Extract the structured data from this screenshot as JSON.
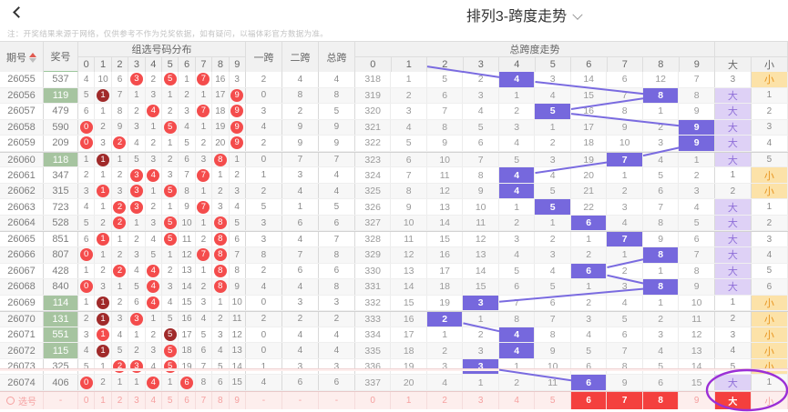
{
  "header": {
    "title": "排列3-跨度走势"
  },
  "icons": {
    "back": "chevron-left-icon",
    "title_dropdown": "chevron-down-icon",
    "sort": "sort-arrows-icon",
    "select_radio": "radio-circle-icon"
  },
  "note": "注：开奖结果来源于网络，仅供参考不作为兑奖依据，如有疑问，以福体彩官方数据为准。",
  "table": {
    "columns": {
      "period": "期号",
      "prize": "奖号",
      "dist_group": "组选号码分布",
      "dist_cols": [
        "0",
        "1",
        "2",
        "3",
        "4",
        "5",
        "6",
        "7",
        "8",
        "9"
      ],
      "span1": "一跨",
      "span2": "二跨",
      "span_total": "总跨",
      "trend_group": "总跨度走势",
      "trend_cols": [
        "0",
        "1",
        "2",
        "3",
        "4",
        "5",
        "6",
        "7",
        "8",
        "9"
      ],
      "big": "大",
      "small": "小"
    },
    "rows": [
      {
        "period": "26055",
        "prize": "537",
        "green": false,
        "dist": [
          "4",
          "10",
          "6",
          "3",
          "2",
          "5",
          "1",
          "7",
          "16",
          "3"
        ],
        "marks": [
          0,
          0,
          0,
          1,
          0,
          1,
          0,
          1,
          0,
          0
        ],
        "spans": [
          "2",
          "4",
          "4"
        ],
        "trend": [
          "318",
          "1",
          "5",
          "2",
          "4",
          "3",
          "14",
          "6",
          "12",
          "7"
        ],
        "hl": 4,
        "big": "3",
        "big_hl": false,
        "small": "小",
        "small_hl": true
      },
      {
        "period": "26056",
        "prize": "119",
        "green": true,
        "dist": [
          "5",
          "1",
          "7",
          "1",
          "3",
          "1",
          "2",
          "1",
          "17",
          "9"
        ],
        "marks": [
          0,
          2,
          0,
          0,
          0,
          0,
          0,
          0,
          0,
          1
        ],
        "spans": [
          "0",
          "8",
          "8"
        ],
        "trend": [
          "319",
          "2",
          "6",
          "3",
          "1",
          "4",
          "15",
          "7",
          "8",
          "8"
        ],
        "hl": 8,
        "big": "大",
        "big_hl": true,
        "small": "1",
        "small_hl": false
      },
      {
        "period": "26057",
        "prize": "479",
        "green": false,
        "dist": [
          "6",
          "1",
          "8",
          "2",
          "4",
          "2",
          "3",
          "7",
          "18",
          "9"
        ],
        "marks": [
          0,
          0,
          0,
          0,
          1,
          0,
          0,
          1,
          0,
          1
        ],
        "spans": [
          "3",
          "2",
          "5"
        ],
        "trend": [
          "320",
          "3",
          "7",
          "4",
          "2",
          "5",
          "16",
          "8",
          "1",
          "9"
        ],
        "hl": 5,
        "big": "大",
        "big_hl": true,
        "small": "2",
        "small_hl": false
      },
      {
        "period": "26058",
        "prize": "590",
        "green": false,
        "dist": [
          "0",
          "2",
          "9",
          "3",
          "1",
          "5",
          "4",
          "1",
          "19",
          "9"
        ],
        "marks": [
          1,
          0,
          0,
          0,
          0,
          1,
          0,
          0,
          0,
          1
        ],
        "spans": [
          "4",
          "9",
          "9"
        ],
        "trend": [
          "321",
          "4",
          "8",
          "5",
          "3",
          "1",
          "17",
          "9",
          "2",
          "9"
        ],
        "hl": 9,
        "big": "大",
        "big_hl": true,
        "small": "3",
        "small_hl": false
      },
      {
        "period": "26059",
        "prize": "209",
        "green": false,
        "dist": [
          "0",
          "3",
          "2",
          "4",
          "2",
          "1",
          "5",
          "2",
          "20",
          "9"
        ],
        "marks": [
          1,
          0,
          1,
          0,
          0,
          0,
          0,
          0,
          0,
          1
        ],
        "spans": [
          "2",
          "9",
          "9"
        ],
        "trend": [
          "322",
          "5",
          "9",
          "6",
          "4",
          "2",
          "18",
          "10",
          "3",
          "9"
        ],
        "hl": 9,
        "big": "大",
        "big_hl": true,
        "small": "4",
        "small_hl": false
      },
      {
        "period": "26060",
        "prize": "118",
        "green": true,
        "dist": [
          "1",
          "1",
          "1",
          "5",
          "3",
          "2",
          "6",
          "3",
          "8",
          "1"
        ],
        "marks": [
          0,
          2,
          0,
          0,
          0,
          0,
          0,
          0,
          1,
          0
        ],
        "spans": [
          "0",
          "7",
          "7"
        ],
        "trend": [
          "323",
          "6",
          "10",
          "7",
          "5",
          "3",
          "19",
          "7",
          "4",
          "1"
        ],
        "hl": 7,
        "big": "大",
        "big_hl": true,
        "small": "5",
        "small_hl": false
      },
      {
        "period": "26061",
        "prize": "347",
        "green": false,
        "dist": [
          "2",
          "1",
          "2",
          "3",
          "4",
          "3",
          "7",
          "7",
          "1",
          "2"
        ],
        "marks": [
          0,
          0,
          0,
          1,
          1,
          0,
          0,
          1,
          0,
          0
        ],
        "spans": [
          "1",
          "3",
          "4"
        ],
        "trend": [
          "324",
          "7",
          "11",
          "8",
          "4",
          "4",
          "20",
          "1",
          "5",
          "2"
        ],
        "hl": 4,
        "big": "1",
        "big_hl": false,
        "small": "小",
        "small_hl": true
      },
      {
        "period": "26062",
        "prize": "315",
        "green": false,
        "dist": [
          "3",
          "1",
          "3",
          "3",
          "1",
          "5",
          "8",
          "1",
          "2",
          "3"
        ],
        "marks": [
          0,
          1,
          0,
          1,
          0,
          1,
          0,
          0,
          0,
          0
        ],
        "spans": [
          "2",
          "4",
          "4"
        ],
        "trend": [
          "325",
          "8",
          "12",
          "9",
          "4",
          "5",
          "21",
          "2",
          "6",
          "3"
        ],
        "hl": 4,
        "big": "2",
        "big_hl": false,
        "small": "小",
        "small_hl": true
      },
      {
        "period": "26063",
        "prize": "723",
        "green": false,
        "dist": [
          "4",
          "1",
          "2",
          "3",
          "2",
          "1",
          "9",
          "7",
          "3",
          "4"
        ],
        "marks": [
          0,
          0,
          1,
          1,
          0,
          0,
          0,
          1,
          0,
          0
        ],
        "spans": [
          "5",
          "1",
          "5"
        ],
        "trend": [
          "326",
          "9",
          "13",
          "10",
          "1",
          "5",
          "22",
          "3",
          "7",
          "4"
        ],
        "hl": 5,
        "big": "大",
        "big_hl": true,
        "small": "1",
        "small_hl": false
      },
      {
        "period": "26064",
        "prize": "528",
        "green": false,
        "dist": [
          "5",
          "2",
          "2",
          "1",
          "3",
          "5",
          "10",
          "1",
          "8",
          "5"
        ],
        "marks": [
          0,
          0,
          1,
          0,
          0,
          1,
          0,
          0,
          1,
          0
        ],
        "spans": [
          "3",
          "6",
          "6"
        ],
        "trend": [
          "327",
          "10",
          "14",
          "11",
          "2",
          "1",
          "6",
          "4",
          "8",
          "5"
        ],
        "hl": 6,
        "big": "大",
        "big_hl": true,
        "small": "2",
        "small_hl": false
      },
      {
        "period": "26065",
        "prize": "851",
        "green": false,
        "dist": [
          "6",
          "1",
          "1",
          "2",
          "4",
          "5",
          "11",
          "2",
          "8",
          "6"
        ],
        "marks": [
          0,
          1,
          0,
          0,
          0,
          1,
          0,
          0,
          1,
          0
        ],
        "spans": [
          "3",
          "4",
          "7"
        ],
        "trend": [
          "328",
          "11",
          "15",
          "12",
          "3",
          "2",
          "1",
          "7",
          "9",
          "6"
        ],
        "hl": 7,
        "big": "大",
        "big_hl": true,
        "small": "3",
        "small_hl": false
      },
      {
        "period": "26066",
        "prize": "807",
        "green": false,
        "dist": [
          "0",
          "1",
          "2",
          "3",
          "5",
          "1",
          "12",
          "7",
          "8",
          "7"
        ],
        "marks": [
          1,
          0,
          0,
          0,
          0,
          0,
          0,
          1,
          1,
          0
        ],
        "spans": [
          "8",
          "7",
          "8"
        ],
        "trend": [
          "329",
          "12",
          "16",
          "13",
          "4",
          "3",
          "2",
          "1",
          "8",
          "7"
        ],
        "hl": 8,
        "big": "大",
        "big_hl": true,
        "small": "4",
        "small_hl": false
      },
      {
        "period": "26067",
        "prize": "428",
        "green": false,
        "dist": [
          "1",
          "2",
          "2",
          "4",
          "4",
          "2",
          "13",
          "1",
          "8",
          "8"
        ],
        "marks": [
          0,
          0,
          1,
          0,
          1,
          0,
          0,
          0,
          1,
          0
        ],
        "spans": [
          "2",
          "6",
          "6"
        ],
        "trend": [
          "330",
          "13",
          "17",
          "14",
          "5",
          "4",
          "6",
          "2",
          "1",
          "8"
        ],
        "hl": 6,
        "big": "大",
        "big_hl": true,
        "small": "5",
        "small_hl": false
      },
      {
        "period": "26068",
        "prize": "840",
        "green": false,
        "dist": [
          "0",
          "3",
          "1",
          "5",
          "4",
          "3",
          "14",
          "2",
          "8",
          "9"
        ],
        "marks": [
          1,
          0,
          0,
          0,
          1,
          0,
          0,
          0,
          1,
          0
        ],
        "spans": [
          "4",
          "4",
          "8"
        ],
        "trend": [
          "331",
          "14",
          "18",
          "15",
          "6",
          "5",
          "1",
          "3",
          "8",
          "9"
        ],
        "hl": 8,
        "big": "大",
        "big_hl": true,
        "small": "6",
        "small_hl": false
      },
      {
        "period": "26069",
        "prize": "114",
        "green": true,
        "dist": [
          "1",
          "1",
          "2",
          "6",
          "4",
          "4",
          "15",
          "3",
          "1",
          "10"
        ],
        "marks": [
          0,
          2,
          0,
          0,
          1,
          0,
          0,
          0,
          0,
          0
        ],
        "spans": [
          "0",
          "3",
          "3"
        ],
        "trend": [
          "332",
          "15",
          "19",
          "3",
          "7",
          "6",
          "2",
          "4",
          "1",
          "10"
        ],
        "hl": 3,
        "big": "1",
        "big_hl": false,
        "small": "小",
        "small_hl": true
      },
      {
        "period": "26070",
        "prize": "131",
        "green": true,
        "dist": [
          "2",
          "1",
          "3",
          "3",
          "1",
          "5",
          "16",
          "4",
          "2",
          "11"
        ],
        "marks": [
          0,
          2,
          0,
          1,
          0,
          0,
          0,
          0,
          0,
          0
        ],
        "spans": [
          "2",
          "2",
          "2"
        ],
        "trend": [
          "333",
          "16",
          "2",
          "1",
          "8",
          "7",
          "3",
          "5",
          "2",
          "11"
        ],
        "hl": 2,
        "big": "2",
        "big_hl": false,
        "small": "小",
        "small_hl": true
      },
      {
        "period": "26071",
        "prize": "551",
        "green": true,
        "dist": [
          "3",
          "1",
          "4",
          "1",
          "2",
          "5",
          "17",
          "5",
          "3",
          "12"
        ],
        "marks": [
          0,
          1,
          0,
          0,
          0,
          2,
          0,
          0,
          0,
          0
        ],
        "spans": [
          "0",
          "4",
          "4"
        ],
        "trend": [
          "334",
          "17",
          "1",
          "2",
          "4",
          "8",
          "4",
          "6",
          "3",
          "12"
        ],
        "hl": 4,
        "big": "3",
        "big_hl": false,
        "small": "小",
        "small_hl": true
      },
      {
        "period": "26072",
        "prize": "115",
        "green": true,
        "dist": [
          "4",
          "1",
          "5",
          "2",
          "3",
          "5",
          "18",
          "6",
          "4",
          "13"
        ],
        "marks": [
          0,
          2,
          0,
          0,
          0,
          1,
          0,
          0,
          0,
          0
        ],
        "spans": [
          "0",
          "4",
          "4"
        ],
        "trend": [
          "335",
          "18",
          "2",
          "3",
          "4",
          "9",
          "5",
          "7",
          "4",
          "13"
        ],
        "hl": 4,
        "big": "4",
        "big_hl": false,
        "small": "小",
        "small_hl": true
      },
      {
        "period": "26073",
        "prize": "325",
        "green": false,
        "dist": [
          "5",
          "1",
          "2",
          "3",
          "4",
          "5",
          "19",
          "7",
          "5",
          "14"
        ],
        "marks": [
          0,
          0,
          1,
          1,
          0,
          1,
          0,
          0,
          0,
          0
        ],
        "spans": [
          "1",
          "3",
          "3"
        ],
        "trend": [
          "336",
          "19",
          "3",
          "3",
          "1",
          "10",
          "6",
          "8",
          "5",
          "14"
        ],
        "hl": 3,
        "big": "5",
        "big_hl": false,
        "small": "小",
        "small_hl": true
      },
      {
        "period": "26074",
        "prize": "406",
        "green": false,
        "dist": [
          "0",
          "2",
          "1",
          "1",
          "4",
          "1",
          "6",
          "8",
          "6",
          "15"
        ],
        "marks": [
          1,
          0,
          0,
          0,
          1,
          0,
          1,
          0,
          0,
          0
        ],
        "spans": [
          "4",
          "6",
          "6"
        ],
        "trend": [
          "337",
          "20",
          "4",
          "1",
          "2",
          "11",
          "6",
          "9",
          "6",
          "15"
        ],
        "hl": 6,
        "big": "大",
        "big_hl": true,
        "small": "1",
        "small_hl": false
      }
    ],
    "prev_hl": 1,
    "select_row": {
      "label": "选号",
      "prize": "-",
      "dist": [
        "0",
        "1",
        "2",
        "3",
        "4",
        "5",
        "6",
        "7",
        "8",
        "9"
      ],
      "spans": [
        "-",
        "-",
        "-"
      ],
      "trend": [
        "0",
        "1",
        "2",
        "3",
        "4",
        "5",
        "6",
        "7",
        "8",
        "9"
      ],
      "trend_selected": [
        6,
        7,
        8
      ],
      "big": "大",
      "big_selected": true,
      "small": "小",
      "small_selected": false
    }
  },
  "annotation": {
    "shape": "ellipse",
    "color": "#9b2fd6",
    "note": "circles big-column of last row and select row"
  },
  "colors": {
    "trend_highlight": "#7668dd",
    "trend_line": "#7a6be0",
    "hit_red": "#f44c4c",
    "hit_dark_red": "#a02a2a",
    "prize_green": "#a6c4a0",
    "big_bg": "#ded1f6",
    "big_text": "#8f6fd8",
    "small_bg": "#fce2a8",
    "small_text": "#e8941e",
    "select_bg": "#fdeeed",
    "select_text": "#f5a0a0",
    "select_red": "#f4403e"
  }
}
